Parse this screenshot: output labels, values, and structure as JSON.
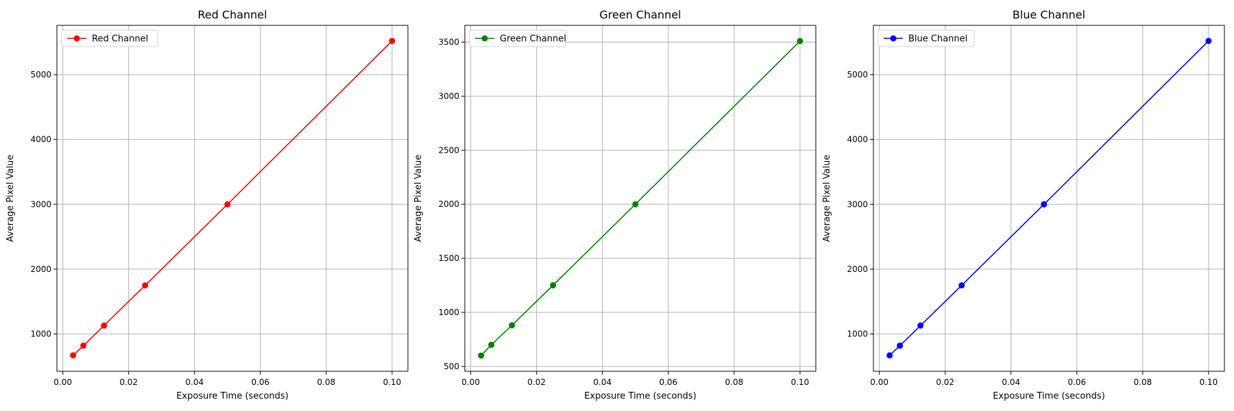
{
  "chart_data": [
    {
      "type": "line",
      "title": "Red Channel",
      "xlabel": "Exposure Time (seconds)",
      "ylabel": "Average Pixel Value",
      "color": "#ff0000",
      "legend_position": "upper-left",
      "grid": true,
      "xlim": [
        -0.0018,
        0.1048
      ],
      "ylim": [
        425,
        5760
      ],
      "xticks": [
        0.0,
        0.02,
        0.04,
        0.06,
        0.08,
        0.1
      ],
      "xtick_labels": [
        "0.00",
        "0.02",
        "0.04",
        "0.06",
        "0.08",
        "0.10"
      ],
      "yticks": [
        1000,
        2000,
        3000,
        4000,
        5000
      ],
      "ytick_labels": [
        "1000",
        "2000",
        "3000",
        "4000",
        "5000"
      ],
      "series": [
        {
          "name": "Red Channel",
          "x": [
            0.003125,
            0.00625,
            0.0125,
            0.025,
            0.05,
            0.1
          ],
          "y": [
            670,
            820,
            1130,
            1750,
            3000,
            5520
          ]
        }
      ]
    },
    {
      "type": "line",
      "title": "Green Channel",
      "xlabel": "Exposure Time (seconds)",
      "ylabel": "Average Pixel Value",
      "color": "#008000",
      "legend_position": "upper-left",
      "grid": true,
      "xlim": [
        -0.0018,
        0.1048
      ],
      "ylim": [
        455,
        3655
      ],
      "xticks": [
        0.0,
        0.02,
        0.04,
        0.06,
        0.08,
        0.1
      ],
      "xtick_labels": [
        "0.00",
        "0.02",
        "0.04",
        "0.06",
        "0.08",
        "0.10"
      ],
      "yticks": [
        500,
        1000,
        1500,
        2000,
        2500,
        3000,
        3500
      ],
      "ytick_labels": [
        "500",
        "1000",
        "1500",
        "2000",
        "2500",
        "3000",
        "3500"
      ],
      "series": [
        {
          "name": "Green Channel",
          "x": [
            0.003125,
            0.00625,
            0.0125,
            0.025,
            0.05,
            0.1
          ],
          "y": [
            600,
            700,
            880,
            1250,
            2000,
            3510
          ]
        }
      ]
    },
    {
      "type": "line",
      "title": "Blue Channel",
      "xlabel": "Exposure Time (seconds)",
      "ylabel": "Average Pixel Value",
      "color": "#0000ff",
      "legend_position": "upper-left",
      "grid": true,
      "xlim": [
        -0.0018,
        0.1048
      ],
      "ylim": [
        425,
        5760
      ],
      "xticks": [
        0.0,
        0.02,
        0.04,
        0.06,
        0.08,
        0.1
      ],
      "xtick_labels": [
        "0.00",
        "0.02",
        "0.04",
        "0.06",
        "0.08",
        "0.10"
      ],
      "yticks": [
        1000,
        2000,
        3000,
        4000,
        5000
      ],
      "ytick_labels": [
        "1000",
        "2000",
        "3000",
        "4000",
        "5000"
      ],
      "series": [
        {
          "name": "Blue Channel",
          "x": [
            0.003125,
            0.00625,
            0.0125,
            0.025,
            0.05,
            0.1
          ],
          "y": [
            670,
            820,
            1130,
            1750,
            3000,
            5520
          ]
        }
      ]
    }
  ]
}
